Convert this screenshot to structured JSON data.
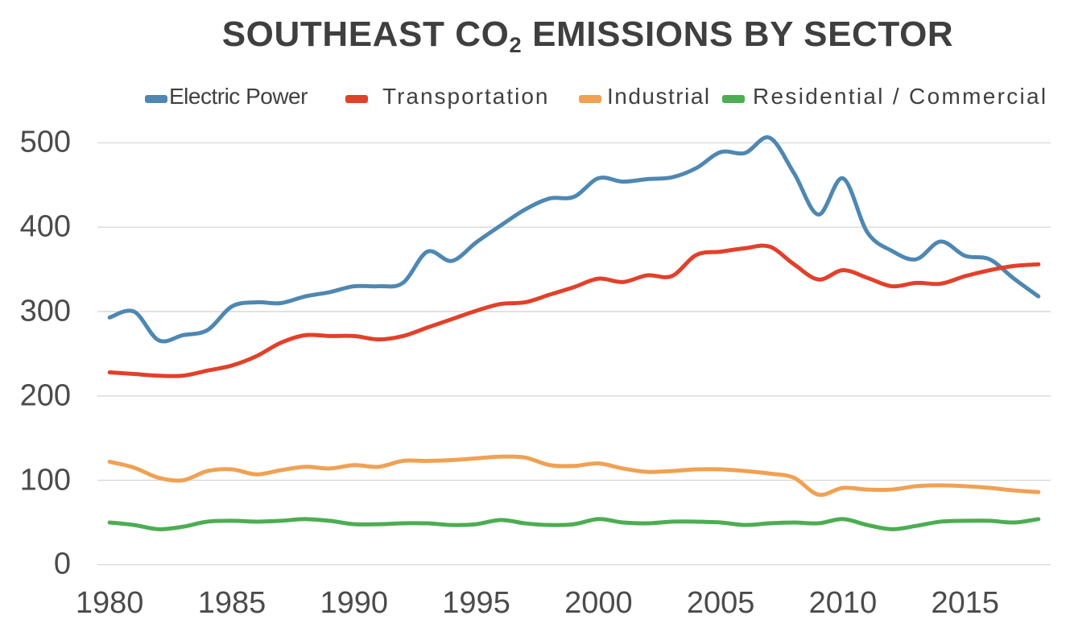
{
  "header": {
    "title_prefix": "SOUTHEAST CO",
    "title_subscript": "2",
    "title_suffix": " EMISSIONS BY SECTOR"
  },
  "chart_data": {
    "type": "line",
    "title": "SOUTHEAST CO2 EMISSIONS BY SECTOR",
    "xlabel": "",
    "ylabel": "",
    "x": [
      1980,
      1981,
      1982,
      1983,
      1984,
      1985,
      1986,
      1987,
      1988,
      1989,
      1990,
      1991,
      1992,
      1993,
      1994,
      1995,
      1996,
      1997,
      1998,
      1999,
      2000,
      2001,
      2002,
      2003,
      2004,
      2005,
      2006,
      2007,
      2008,
      2009,
      2010,
      2011,
      2012,
      2013,
      2014,
      2015,
      2016,
      2017,
      2018
    ],
    "series": [
      {
        "name": "Electric Power",
        "color": "#4e87b2",
        "values": [
          293,
          300,
          266,
          272,
          278,
          306,
          311,
          310,
          318,
          323,
          330,
          330,
          334,
          371,
          360,
          382,
          402,
          421,
          434,
          436,
          458,
          454,
          457,
          459,
          470,
          489,
          488,
          506,
          464,
          415,
          458,
          394,
          372,
          362,
          383,
          366,
          362,
          339,
          318
        ]
      },
      {
        "name": "Transportation",
        "color": "#e2402a",
        "values": [
          228,
          226,
          224,
          224,
          230,
          236,
          247,
          263,
          272,
          271,
          271,
          267,
          271,
          281,
          291,
          301,
          309,
          311,
          320,
          329,
          339,
          335,
          343,
          342,
          367,
          371,
          375,
          377,
          356,
          338,
          349,
          340,
          330,
          334,
          333,
          342,
          349,
          354,
          356
        ]
      },
      {
        "name": "Industrial",
        "color": "#f0a153",
        "values": [
          122,
          115,
          103,
          100,
          111,
          113,
          107,
          112,
          116,
          114,
          118,
          116,
          123,
          123,
          124,
          126,
          128,
          127,
          118,
          117,
          120,
          114,
          110,
          111,
          113,
          113,
          111,
          108,
          103,
          83,
          91,
          89,
          89,
          93,
          94,
          93,
          91,
          88,
          86
        ]
      },
      {
        "name": "Residential / Commercial",
        "color": "#4cad52",
        "values": [
          50,
          47,
          42,
          45,
          51,
          52,
          51,
          52,
          54,
          52,
          48,
          48,
          49,
          49,
          47,
          48,
          53,
          49,
          47,
          48,
          54,
          50,
          49,
          51,
          51,
          50,
          47,
          49,
          50,
          49,
          54,
          47,
          42,
          46,
          51,
          52,
          52,
          50,
          54
        ]
      }
    ],
    "xticks": [
      1980,
      1985,
      1990,
      1995,
      2000,
      2005,
      2010,
      2015
    ],
    "yticks": [
      0,
      100,
      200,
      300,
      400,
      500
    ],
    "ylim": [
      0,
      500
    ],
    "grid": "horizontal-only",
    "gridline_color": "#d9d9d9",
    "legend_position": "top",
    "smooth": true,
    "background": "#ffffff"
  }
}
